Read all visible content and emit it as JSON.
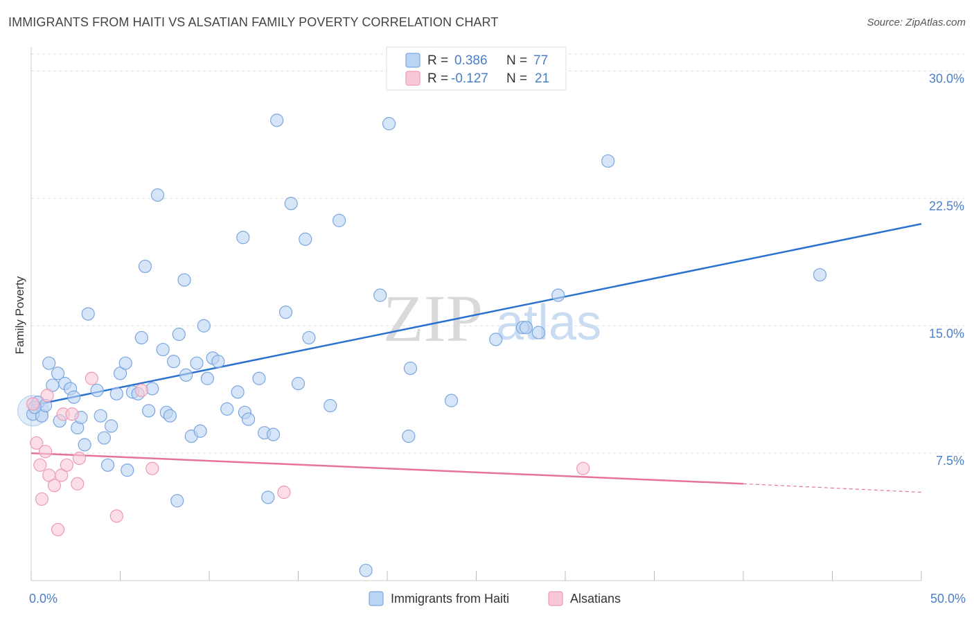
{
  "title": "IMMIGRANTS FROM HAITI VS ALSATIAN FAMILY POVERTY CORRELATION CHART",
  "source": "Source: ZipAtlas.com",
  "watermark": {
    "zip": "ZIP",
    "atlas": "atlas"
  },
  "legend": {
    "blue": {
      "r_label": "R =",
      "r_value": "0.386",
      "n_label": "N =",
      "n_value": "77"
    },
    "pink": {
      "r_label": "R =",
      "r_value": "-0.127",
      "n_label": "N =",
      "n_value": "21"
    }
  },
  "bottom_legend": {
    "blue": "Immigrants from Haiti",
    "pink": "Alsatians"
  },
  "colors": {
    "blue_fill": "#bcd4f3",
    "blue_stroke": "#7aa6df",
    "blue_line": "#2a72cf",
    "pink_fill": "#f8c8d6",
    "pink_stroke": "#ee9ab3",
    "pink_line": "#e5739a",
    "axis_text": "#4a7ec8",
    "grid": "#dddddd"
  },
  "chart_data": {
    "type": "scatter",
    "title": "IMMIGRANTS FROM HAITI VS ALSATIAN FAMILY POVERTY CORRELATION CHART",
    "xlabel": "",
    "ylabel": "Family Poverty",
    "xlim": [
      0,
      50
    ],
    "ylim": [
      0,
      31
    ],
    "x_tick_labels": {
      "left": "0.0%",
      "right": "50.0%"
    },
    "y_ticks": [
      {
        "value": 7.5,
        "label": "7.5%"
      },
      {
        "value": 15,
        "label": "15.0%"
      },
      {
        "value": 22.5,
        "label": "22.5%"
      },
      {
        "value": 30,
        "label": "30.0%"
      }
    ],
    "series": [
      {
        "name": "Immigrants from Haiti",
        "color": "#7aa6df",
        "trend": {
          "x0": 0,
          "y0": 10.3,
          "x1": 50,
          "y1": 21.0
        },
        "points": [
          [
            0.1,
            9.8
          ],
          [
            0.4,
            10.5
          ],
          [
            0.6,
            9.7
          ],
          [
            0.8,
            10.3
          ],
          [
            1.0,
            12.8
          ],
          [
            1.2,
            11.5
          ],
          [
            1.5,
            12.2
          ],
          [
            1.6,
            9.4
          ],
          [
            1.9,
            11.6
          ],
          [
            2.2,
            11.3
          ],
          [
            2.4,
            10.8
          ],
          [
            2.6,
            9.0
          ],
          [
            2.8,
            9.6
          ],
          [
            3.0,
            8.0
          ],
          [
            3.2,
            15.7
          ],
          [
            3.7,
            11.2
          ],
          [
            3.9,
            9.7
          ],
          [
            4.1,
            8.4
          ],
          [
            4.3,
            6.8
          ],
          [
            4.5,
            9.1
          ],
          [
            4.8,
            11.0
          ],
          [
            5.0,
            12.2
          ],
          [
            5.3,
            12.8
          ],
          [
            5.4,
            6.5
          ],
          [
            5.7,
            11.1
          ],
          [
            6.0,
            11.0
          ],
          [
            6.2,
            14.3
          ],
          [
            6.4,
            18.5
          ],
          [
            6.6,
            10.0
          ],
          [
            6.8,
            11.3
          ],
          [
            7.1,
            22.7
          ],
          [
            7.4,
            13.6
          ],
          [
            7.6,
            9.9
          ],
          [
            7.8,
            9.7
          ],
          [
            8.0,
            12.9
          ],
          [
            8.2,
            4.7
          ],
          [
            8.3,
            14.5
          ],
          [
            8.6,
            17.7
          ],
          [
            8.7,
            12.1
          ],
          [
            9.0,
            8.5
          ],
          [
            9.3,
            12.8
          ],
          [
            9.5,
            8.8
          ],
          [
            9.7,
            15.0
          ],
          [
            9.9,
            11.9
          ],
          [
            10.2,
            13.1
          ],
          [
            10.5,
            12.9
          ],
          [
            11.0,
            10.1
          ],
          [
            11.6,
            11.1
          ],
          [
            11.9,
            20.2
          ],
          [
            12.0,
            9.9
          ],
          [
            12.2,
            9.5
          ],
          [
            12.8,
            11.9
          ],
          [
            13.1,
            8.7
          ],
          [
            13.3,
            4.9
          ],
          [
            13.6,
            8.6
          ],
          [
            13.8,
            27.1
          ],
          [
            14.3,
            15.8
          ],
          [
            14.6,
            22.2
          ],
          [
            15.0,
            11.6
          ],
          [
            15.4,
            20.1
          ],
          [
            15.6,
            14.3
          ],
          [
            16.8,
            10.3
          ],
          [
            17.3,
            21.2
          ],
          [
            18.8,
            0.6
          ],
          [
            19.6,
            16.8
          ],
          [
            20.1,
            26.9
          ],
          [
            21.2,
            8.5
          ],
          [
            21.3,
            12.5
          ],
          [
            23.6,
            10.6
          ],
          [
            26.1,
            14.2
          ],
          [
            27.6,
            14.9
          ],
          [
            27.8,
            14.9
          ],
          [
            28.5,
            14.6
          ],
          [
            29.6,
            16.8
          ],
          [
            32.4,
            24.7
          ],
          [
            44.3,
            18.0
          ],
          [
            0.2,
            10.2
          ]
        ]
      },
      {
        "name": "Alsatians",
        "color": "#ee9ab3",
        "trend": {
          "x0": 0,
          "y0": 7.5,
          "x1": 40,
          "y1": 5.7,
          "dashed_to_x": 50,
          "dashed_to_y": 5.2
        },
        "points": [
          [
            0.1,
            10.4
          ],
          [
            0.3,
            8.1
          ],
          [
            0.5,
            6.8
          ],
          [
            0.6,
            4.8
          ],
          [
            0.8,
            7.6
          ],
          [
            0.9,
            10.9
          ],
          [
            1.0,
            6.2
          ],
          [
            1.3,
            5.6
          ],
          [
            1.5,
            3.0
          ],
          [
            1.7,
            6.2
          ],
          [
            1.8,
            9.8
          ],
          [
            2.0,
            6.8
          ],
          [
            2.3,
            9.8
          ],
          [
            2.6,
            5.7
          ],
          [
            2.7,
            7.2
          ],
          [
            3.4,
            11.9
          ],
          [
            4.8,
            3.8
          ],
          [
            6.2,
            11.2
          ],
          [
            6.8,
            6.6
          ],
          [
            14.2,
            5.2
          ],
          [
            31.0,
            6.6
          ]
        ]
      }
    ]
  }
}
